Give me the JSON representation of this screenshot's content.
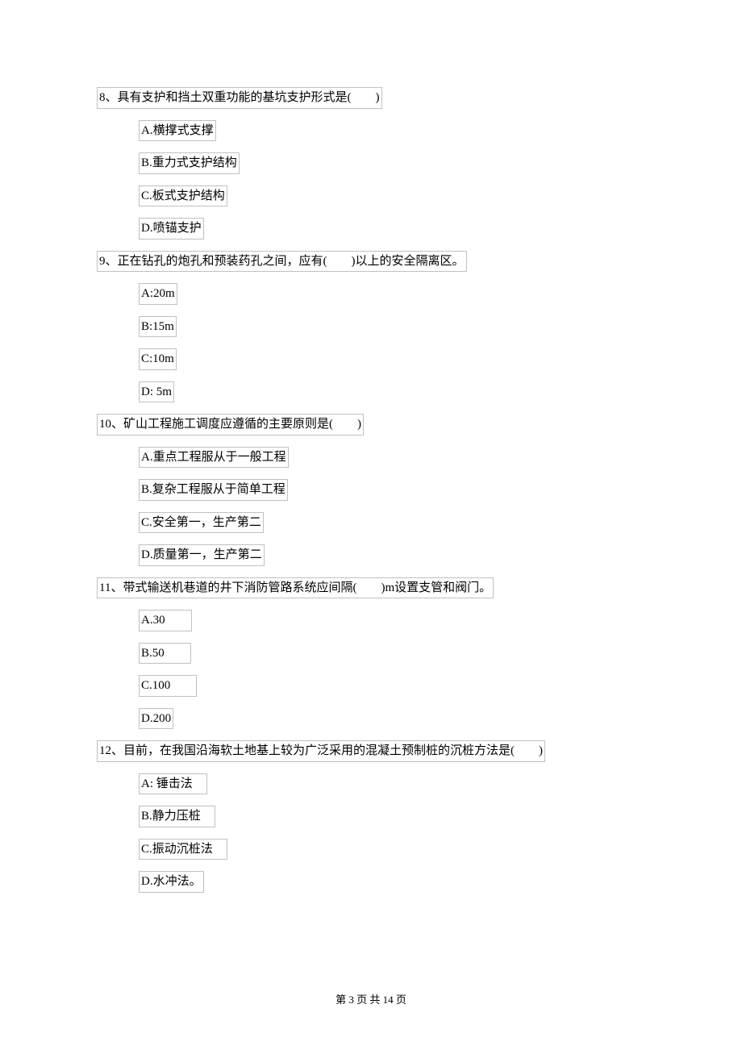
{
  "questions": [
    {
      "number": "8、",
      "text": "具有支护和挡土双重功能的基坑支护形式是(　　)",
      "options": [
        "A.横撑式支撑",
        "B.重力式支护结构",
        "C.板式支护结构",
        "D.喷锚支护"
      ]
    },
    {
      "number": "9、",
      "text": "正在钻孔的炮孔和预装药孔之间，应有(　　)以上的安全隔离区。",
      "options": [
        "A:20m",
        "B:15m",
        "C:10m",
        "D: 5m"
      ]
    },
    {
      "number": "10、",
      "text": "矿山工程施工调度应遵循的主要原则是(　　)",
      "options": [
        "A.重点工程服从于一般工程",
        "B.复杂工程服从于简单工程",
        "C.安全第一，生产第二",
        "D.质量第一，生产第二"
      ]
    },
    {
      "number": "11、",
      "text": "带式输送机巷道的井下消防管路系统应间隔(　　)m设置支管和阀门。",
      "options": [
        "A.30　　",
        "B.50　　",
        "C.100　　",
        "D.200"
      ]
    },
    {
      "number": "12、",
      "text": "目前，在我国沿海软土地基上较为广泛采用的混凝土预制桩的沉桩方法是(　　)",
      "options": [
        "A: 锤击法　",
        "B.静力压桩　",
        "C.振动沉桩法　",
        "D.水冲法。"
      ]
    }
  ],
  "footer": "第 3 页 共 14 页"
}
